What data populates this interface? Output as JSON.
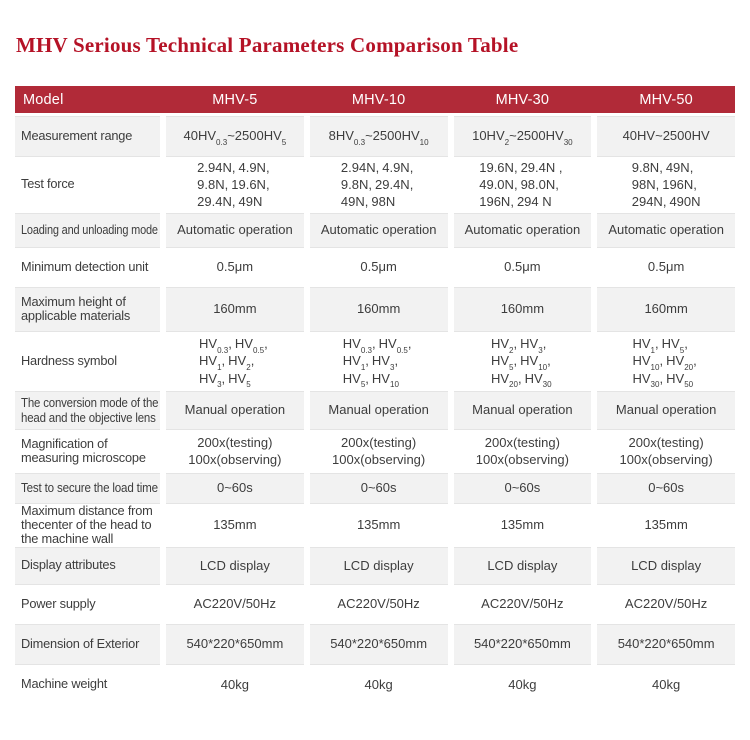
{
  "page": {
    "title": "MHV Serious Technical Parameters Comparison Table"
  },
  "colors": {
    "title_red": "#b51226",
    "header_bg": "#b12a38",
    "header_text": "#ffffff",
    "stripe_bg": "#f2f2f2",
    "body_text": "#3d3d3d"
  },
  "table": {
    "header": {
      "model_label": "Model",
      "columns": [
        "MHV-5",
        "MHV-10",
        "MHV-30",
        "MHV-50"
      ]
    },
    "rows": [
      {
        "id": "measurement-range",
        "label_lines": [
          "Measurement range"
        ],
        "cells": [
          [
            "40HV{0.3}~2500HV{5}"
          ],
          [
            "8HV{0.3}~2500HV{10}"
          ],
          [
            "10HV{2}~2500HV{30}"
          ],
          [
            "40HV~2500HV"
          ]
        ]
      },
      {
        "id": "test-force",
        "label_lines": [
          "Test force"
        ],
        "cells": [
          [
            "2.94N、4.9N、",
            "9.8N、19.6N、",
            "29.4N、49N"
          ],
          [
            "2.94N、4.9N、",
            "9.8N、29.4N、",
            "49N、98N"
          ],
          [
            "19.6N、29.4N 、",
            "49.0N、98.0N、",
            "196N、294 N"
          ],
          [
            "9.8N、49N、",
            "98N、196N、",
            "294N、490N"
          ]
        ]
      },
      {
        "id": "loading-mode",
        "label_lines": [
          "Loading and unloading mode"
        ],
        "cells": [
          [
            "Automatic operation"
          ],
          [
            "Automatic operation"
          ],
          [
            "Automatic operation"
          ],
          [
            "Automatic operation"
          ]
        ]
      },
      {
        "id": "min-detection",
        "label_lines": [
          "Minimum detection unit"
        ],
        "cells": [
          [
            "0.5μm"
          ],
          [
            "0.5μm"
          ],
          [
            "0.5μm"
          ],
          [
            "0.5μm"
          ]
        ]
      },
      {
        "id": "max-height",
        "label_lines": [
          "Maximum height of",
          "applicable materials"
        ],
        "cells": [
          [
            "160mm"
          ],
          [
            "160mm"
          ],
          [
            "160mm"
          ],
          [
            "160mm"
          ]
        ]
      },
      {
        "id": "hardness-symbol",
        "label_lines": [
          "Hardness symbol"
        ],
        "cells": [
          [
            "HV{0.3}、HV{0.5}、",
            "HV{1}、HV{2}、",
            "HV{3}、HV{5}"
          ],
          [
            "HV{0.3}、HV{0.5}、",
            "HV{1}、HV{3}、",
            "HV{5}、HV{10}"
          ],
          [
            "HV{2}、HV{3}、",
            "HV{5}、HV{10}、",
            "HV{20}、HV{30}"
          ],
          [
            "HV{1}、HV{5}、",
            "HV{10}、HV{20}、",
            "HV{30}、HV{50}"
          ]
        ]
      },
      {
        "id": "conversion-mode",
        "label_lines": [
          "The conversion mode of the",
          "head and the objective lens"
        ],
        "cells": [
          [
            "Manual operation"
          ],
          [
            "Manual operation"
          ],
          [
            "Manual operation"
          ],
          [
            "Manual operation"
          ]
        ]
      },
      {
        "id": "magnification",
        "label_lines": [
          "Magnification of",
          "measuring microscope"
        ],
        "cells": [
          [
            "200x(testing)",
            "100x(observing)"
          ],
          [
            "200x(testing)",
            "100x(observing)"
          ],
          [
            "200x(testing)",
            "100x(observing)"
          ],
          [
            "200x(testing)",
            "100x(observing)"
          ]
        ]
      },
      {
        "id": "load-time",
        "label_lines": [
          "Test to secure the load time"
        ],
        "cells": [
          [
            "0~60s"
          ],
          [
            "0~60s"
          ],
          [
            "0~60s"
          ],
          [
            "0~60s"
          ]
        ]
      },
      {
        "id": "max-distance",
        "label_lines": [
          "Maximum distance from",
          "thecenter of the head to",
          "the machine wall"
        ],
        "cells": [
          [
            "135mm"
          ],
          [
            "135mm"
          ],
          [
            "135mm"
          ],
          [
            "135mm"
          ]
        ]
      },
      {
        "id": "display-attributes",
        "label_lines": [
          "Display attributes"
        ],
        "cells": [
          [
            "LCD display"
          ],
          [
            "LCD display"
          ],
          [
            "LCD display"
          ],
          [
            "LCD display"
          ]
        ]
      },
      {
        "id": "power-supply",
        "label_lines": [
          "Power supply"
        ],
        "cells": [
          [
            "AC220V/50Hz"
          ],
          [
            "AC220V/50Hz"
          ],
          [
            "AC220V/50Hz"
          ],
          [
            "AC220V/50Hz"
          ]
        ]
      },
      {
        "id": "dimension",
        "label_lines": [
          "Dimension of Exterior"
        ],
        "cells": [
          [
            "540*220*650mm"
          ],
          [
            "540*220*650mm"
          ],
          [
            "540*220*650mm"
          ],
          [
            "540*220*650mm"
          ]
        ]
      },
      {
        "id": "machine-weight",
        "label_lines": [
          "Machine weight"
        ],
        "cells": [
          [
            "40kg"
          ],
          [
            "40kg"
          ],
          [
            "40kg"
          ],
          [
            "40kg"
          ]
        ]
      }
    ]
  }
}
